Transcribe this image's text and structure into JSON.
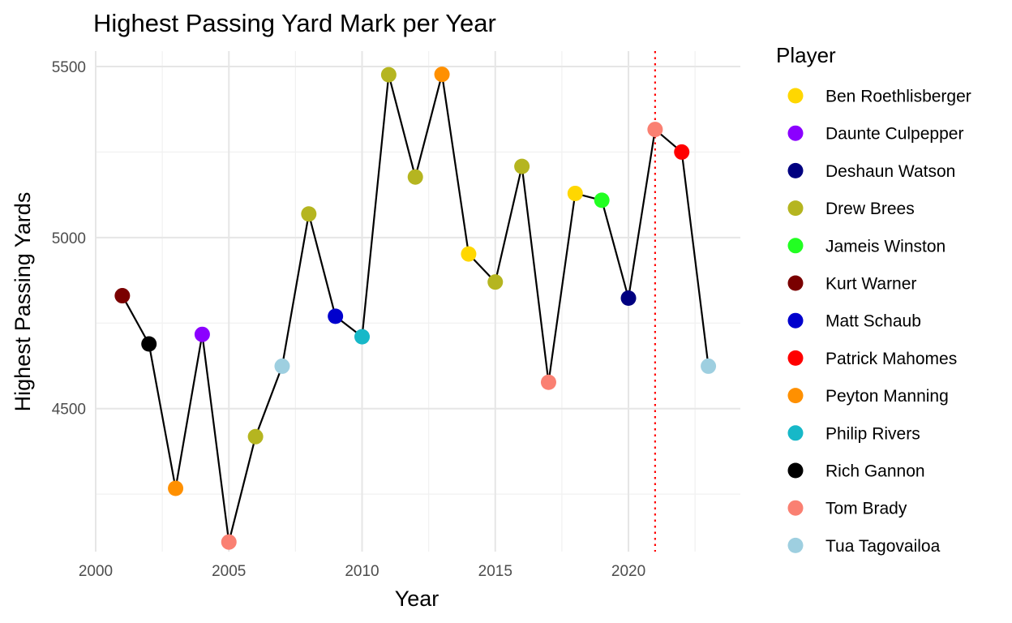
{
  "chart_data": {
    "type": "scatter",
    "title": "Highest Passing Yard Mark per Year",
    "xlabel": "Year",
    "ylabel": "Highest Passing Yards",
    "xlim": [
      2000,
      2024.2
    ],
    "ylim": [
      4082,
      5545
    ],
    "x_ticks": [
      2000,
      2005,
      2010,
      2015,
      2020
    ],
    "y_ticks": [
      4500,
      5000,
      5500
    ],
    "grid": true,
    "connect_points": true,
    "reference_line": {
      "x": 2021,
      "color": "#FF0000",
      "style": "dotted"
    },
    "legend": {
      "title": "Player",
      "position": "right",
      "entries": [
        {
          "name": "Ben Roethlisberger",
          "color": "#FFD700"
        },
        {
          "name": "Daunte Culpepper",
          "color": "#8B00FF"
        },
        {
          "name": "Deshaun Watson",
          "color": "#000080"
        },
        {
          "name": "Drew Brees",
          "color": "#B5B520"
        },
        {
          "name": "Jameis Winston",
          "color": "#22FF22"
        },
        {
          "name": "Kurt Warner",
          "color": "#7A0000"
        },
        {
          "name": "Matt Schaub",
          "color": "#0000CD"
        },
        {
          "name": "Patrick Mahomes",
          "color": "#FF0000"
        },
        {
          "name": "Peyton Manning",
          "color": "#FF9000"
        },
        {
          "name": "Philip Rivers",
          "color": "#17B8C8"
        },
        {
          "name": "Rich Gannon",
          "color": "#000000"
        },
        {
          "name": "Tom Brady",
          "color": "#FA8072"
        },
        {
          "name": "Tua Tagovailoa",
          "color": "#9ECFE0"
        }
      ]
    },
    "points": [
      {
        "year": 2001,
        "yards": 4830,
        "player": "Kurt Warner"
      },
      {
        "year": 2002,
        "yards": 4689,
        "player": "Rich Gannon"
      },
      {
        "year": 2003,
        "yards": 4267,
        "player": "Peyton Manning"
      },
      {
        "year": 2004,
        "yards": 4717,
        "player": "Daunte Culpepper"
      },
      {
        "year": 2005,
        "yards": 4110,
        "player": "Tom Brady"
      },
      {
        "year": 2006,
        "yards": 4418,
        "player": "Drew Brees"
      },
      {
        "year": 2007,
        "yards": 4624,
        "player": "Tua Tagovailoa"
      },
      {
        "year": 2008,
        "yards": 5069,
        "player": "Drew Brees"
      },
      {
        "year": 2009,
        "yards": 4770,
        "player": "Matt Schaub"
      },
      {
        "year": 2010,
        "yards": 4710,
        "player": "Philip Rivers"
      },
      {
        "year": 2011,
        "yards": 5476,
        "player": "Drew Brees"
      },
      {
        "year": 2012,
        "yards": 5177,
        "player": "Drew Brees"
      },
      {
        "year": 2013,
        "yards": 5477,
        "player": "Peyton Manning"
      },
      {
        "year": 2014,
        "yards": 4952,
        "player": "Ben Roethlisberger"
      },
      {
        "year": 2015,
        "yards": 4870,
        "player": "Drew Brees"
      },
      {
        "year": 2016,
        "yards": 5208,
        "player": "Drew Brees"
      },
      {
        "year": 2017,
        "yards": 4577,
        "player": "Tom Brady"
      },
      {
        "year": 2018,
        "yards": 5129,
        "player": "Ben Roethlisberger"
      },
      {
        "year": 2019,
        "yards": 5109,
        "player": "Jameis Winston"
      },
      {
        "year": 2020,
        "yards": 4823,
        "player": "Deshaun Watson"
      },
      {
        "year": 2021,
        "yards": 5316,
        "player": "Tom Brady"
      },
      {
        "year": 2022,
        "yards": 5250,
        "player": "Patrick Mahomes"
      },
      {
        "year": 2023,
        "yards": 4624,
        "player": "Tua Tagovailoa"
      }
    ]
  }
}
